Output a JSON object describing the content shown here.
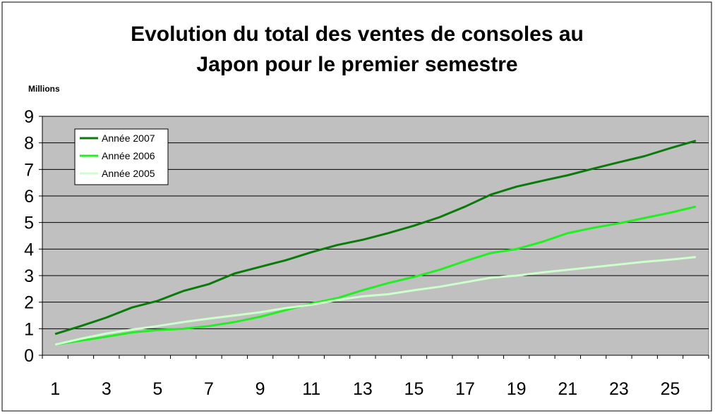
{
  "chart_data": {
    "type": "line",
    "title_lines": [
      "Evolution du total des ventes de consoles au",
      "Japon pour le premier semestre"
    ],
    "unit_label": "Millions",
    "xlabel": "",
    "ylabel": "",
    "x": [
      1,
      2,
      3,
      4,
      5,
      6,
      7,
      8,
      9,
      10,
      11,
      12,
      13,
      14,
      15,
      16,
      17,
      18,
      19,
      20,
      21,
      22,
      23,
      24,
      25,
      26
    ],
    "x_tick_labels": [
      "1",
      "3",
      "5",
      "7",
      "9",
      "11",
      "13",
      "15",
      "17",
      "19",
      "21",
      "23",
      "25"
    ],
    "y_tick_labels": [
      "0",
      "1",
      "2",
      "3",
      "4",
      "5",
      "6",
      "7",
      "8",
      "9"
    ],
    "xlim": [
      0.5,
      26.5
    ],
    "ylim": [
      0,
      9
    ],
    "grid": true,
    "legend_position": "top-left",
    "plot_background": "#c0c0c0",
    "series": [
      {
        "name": "Année 2007",
        "color": "#0a7a0a",
        "values": [
          0.8,
          1.1,
          1.42,
          1.8,
          2.05,
          2.42,
          2.68,
          3.08,
          3.33,
          3.58,
          3.88,
          4.15,
          4.35,
          4.6,
          4.88,
          5.2,
          5.6,
          6.05,
          6.35,
          6.57,
          6.78,
          7.03,
          7.27,
          7.5,
          7.8,
          8.08
        ]
      },
      {
        "name": "Année 2006",
        "color": "#22ee22",
        "values": [
          0.4,
          0.55,
          0.7,
          0.86,
          0.95,
          1.0,
          1.1,
          1.25,
          1.45,
          1.7,
          1.95,
          2.15,
          2.45,
          2.72,
          2.95,
          3.22,
          3.55,
          3.85,
          4.0,
          4.27,
          4.6,
          4.8,
          4.97,
          5.17,
          5.37,
          5.6
        ]
      },
      {
        "name": "Année 2005",
        "color": "#ccffcc",
        "values": [
          0.4,
          0.62,
          0.82,
          0.97,
          1.1,
          1.25,
          1.38,
          1.5,
          1.62,
          1.78,
          1.9,
          2.08,
          2.22,
          2.3,
          2.45,
          2.58,
          2.75,
          2.92,
          3.0,
          3.12,
          3.22,
          3.32,
          3.42,
          3.52,
          3.6,
          3.7
        ]
      }
    ]
  }
}
